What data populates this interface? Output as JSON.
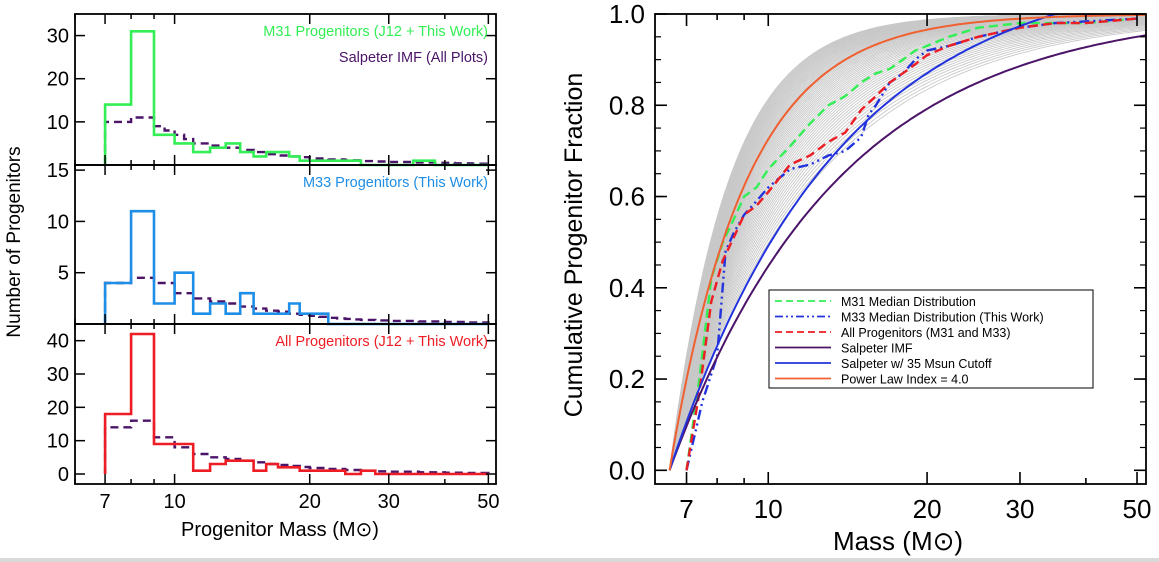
{
  "chart_data": [
    {
      "type": "bar",
      "panel": "M31",
      "x_scale": "log",
      "xlim": [
        6,
        52
      ],
      "ylim": [
        0,
        35
      ],
      "xticks": [
        7,
        10,
        20,
        30,
        50
      ],
      "yticks": [
        10,
        20,
        30
      ],
      "ylabel": "Number of Progenitors",
      "legend_placement": "top-right",
      "series": [
        {
          "name": "M31 Progenitors (J12 + This Work)",
          "color": "#33ee55",
          "style": "step",
          "bin_edges": [
            7,
            7.5,
            8.0,
            8.5,
            9.0,
            9.5,
            10.0,
            10.5,
            11.0,
            11.5,
            12.0,
            13.0,
            14.0,
            15.0,
            16.0,
            17.0,
            18.0,
            19.0,
            20.0,
            22.0,
            24.0,
            26.0,
            28.0,
            30.0,
            34.0,
            38.0,
            42.0,
            46.0,
            50.0
          ],
          "counts": [
            14,
            14,
            31,
            31,
            7,
            7,
            5,
            5,
            3,
            3,
            4,
            5,
            3,
            2,
            3,
            3,
            2,
            1,
            1,
            1,
            1,
            0,
            0,
            0,
            1,
            0,
            0,
            0
          ]
        },
        {
          "name": "Salpeter IMF (All Plots)",
          "color": "#4b1468",
          "style": "dashed-step",
          "bin_edges": [
            7,
            7.5,
            8.0,
            8.5,
            9.0,
            9.5,
            10.0,
            10.5,
            11.0,
            11.5,
            12.0,
            13.0,
            14.0,
            15.0,
            16.0,
            17.0,
            18.0,
            19.0,
            20.0,
            22.0,
            24.0,
            26.0,
            28.0,
            30.0,
            34.0,
            38.0,
            42.0,
            46.0,
            50.0
          ],
          "counts": [
            10,
            10,
            11,
            11,
            9,
            8,
            7,
            6,
            5,
            5,
            4.5,
            4,
            3.5,
            3,
            2.5,
            2.2,
            2,
            1.8,
            1.5,
            1.3,
            1.1,
            0.9,
            0.8,
            0.7,
            0.6,
            0.5,
            0.4,
            0.3
          ]
        }
      ]
    },
    {
      "type": "bar",
      "panel": "M33",
      "x_scale": "log",
      "xlim": [
        6,
        52
      ],
      "ylim": [
        0,
        15.5
      ],
      "xticks": [
        7,
        10,
        20,
        30,
        50
      ],
      "yticks": [
        5,
        10,
        15
      ],
      "legend_placement": "top-right",
      "series": [
        {
          "name": "M33 Progenitors (This Work)",
          "color": "#1e8ee6",
          "style": "step",
          "bin_edges": [
            7,
            8,
            9,
            10,
            11,
            12,
            13,
            14,
            15,
            16,
            17,
            18,
            19,
            20,
            21,
            22,
            23,
            24,
            25,
            26,
            28,
            30,
            35,
            40,
            45,
            50
          ],
          "counts": [
            4,
            11,
            2,
            5,
            1,
            2,
            1,
            3,
            1,
            1,
            1,
            2,
            1,
            1,
            1,
            0,
            0,
            0,
            0,
            0,
            0,
            0,
            0,
            0,
            0
          ]
        },
        {
          "name": "",
          "color": "#4b1468",
          "style": "dashed-step",
          "bin_edges": [
            7,
            8,
            9,
            10,
            11,
            12,
            13,
            14,
            15,
            16,
            17,
            18,
            19,
            20,
            21,
            22,
            23,
            24,
            25,
            26,
            28,
            30,
            35,
            40,
            45,
            50
          ],
          "counts": [
            4,
            4.5,
            4,
            3,
            2.5,
            2.2,
            2,
            1.7,
            1.5,
            1.3,
            1.2,
            1.0,
            0.9,
            0.8,
            0.7,
            0.6,
            0.55,
            0.5,
            0.45,
            0.4,
            0.35,
            0.3,
            0.25,
            0.2,
            0.15
          ]
        }
      ]
    },
    {
      "type": "bar",
      "panel": "All",
      "x_scale": "log",
      "xlim": [
        6,
        52
      ],
      "ylim": [
        -3,
        45
      ],
      "xticks": [
        7,
        10,
        20,
        30,
        50
      ],
      "yticks": [
        0,
        10,
        20,
        30,
        40
      ],
      "xlabel": "Progenitor Mass (M⊙)",
      "legend_placement": "top-right",
      "series": [
        {
          "name": "All Progenitors (J12 + This Work)",
          "color": "#ee1c24",
          "style": "step",
          "bin_edges": [
            7,
            8,
            9,
            10,
            11,
            12,
            13,
            14,
            15,
            16,
            17,
            18,
            19,
            20,
            22,
            24,
            26,
            28,
            30,
            35,
            40,
            45,
            50
          ],
          "counts": [
            18,
            42,
            9,
            9,
            1,
            3,
            4,
            4,
            1,
            3,
            2,
            2,
            1,
            1,
            1,
            0,
            1,
            0,
            0,
            0,
            0,
            0
          ]
        },
        {
          "name": "",
          "color": "#4b1468",
          "style": "dashed-step",
          "bin_edges": [
            7,
            8,
            9,
            10,
            11,
            12,
            13,
            14,
            15,
            16,
            17,
            18,
            19,
            20,
            22,
            24,
            26,
            28,
            30,
            35,
            40,
            45,
            50
          ],
          "counts": [
            14,
            16,
            11,
            8,
            6,
            5,
            4.5,
            4,
            3.5,
            3,
            2.7,
            2.4,
            2.1,
            1.8,
            1.5,
            1.2,
            1.0,
            0.8,
            0.7,
            0.5,
            0.4,
            0.3
          ]
        }
      ]
    },
    {
      "type": "line",
      "panel": "cumulative",
      "x_scale": "log",
      "xlim": [
        6.1,
        52
      ],
      "ylim": [
        -0.03,
        1.0
      ],
      "xticks": [
        7,
        10,
        20,
        30,
        50
      ],
      "yticks": [
        0.0,
        0.2,
        0.4,
        0.6,
        0.8,
        1.0
      ],
      "ytick_labels": [
        "0.0",
        "0.2",
        "0.4",
        "0.6",
        "0.8",
        "1.0"
      ],
      "xlabel": "Mass (M⊙)",
      "ylabel": "Cumulative Progenitor Fraction",
      "legend_placement": "center-right",
      "grey_realizations": {
        "color": "#c8c8c8",
        "count": 60
      },
      "series": [
        {
          "name": "M31 Median Distribution",
          "color": "#33ee55",
          "style": "dashed",
          "x": [
            7.0,
            7.4,
            7.8,
            8.2,
            8.6,
            9.0,
            9.5,
            10.0,
            11.0,
            12.0,
            13.0,
            14.0,
            15.0,
            16.0,
            17.0,
            18.0,
            19.0,
            20.0,
            22.0,
            25.0,
            30.0,
            35.0,
            40.0,
            50.0
          ],
          "y": [
            0.0,
            0.2,
            0.42,
            0.5,
            0.55,
            0.6,
            0.62,
            0.66,
            0.71,
            0.76,
            0.8,
            0.82,
            0.85,
            0.87,
            0.88,
            0.9,
            0.92,
            0.93,
            0.95,
            0.97,
            0.98,
            0.98,
            0.98,
            0.99
          ]
        },
        {
          "name": "M33 Median Distribution (This Work)",
          "color": "#2233dd",
          "style": "dash-dot-dot",
          "x": [
            7.0,
            7.5,
            8.0,
            8.3,
            8.6,
            9.0,
            9.5,
            10.0,
            11.0,
            12.0,
            13.0,
            14.0,
            15.0,
            15.5,
            16.0,
            17.0,
            18.0,
            19.0,
            20.0,
            22.0,
            25.0,
            30.0,
            35.0,
            50.0
          ],
          "y": [
            0.0,
            0.15,
            0.25,
            0.48,
            0.52,
            0.56,
            0.59,
            0.62,
            0.66,
            0.67,
            0.69,
            0.7,
            0.73,
            0.78,
            0.8,
            0.85,
            0.87,
            0.9,
            0.92,
            0.93,
            0.95,
            0.97,
            0.98,
            0.99
          ]
        },
        {
          "name": "All Progenitors (M31 and M33)",
          "color": "#ee1c24",
          "style": "dashed",
          "x": [
            7.0,
            7.4,
            7.8,
            8.2,
            8.6,
            9.0,
            9.5,
            10.0,
            11.0,
            12.0,
            13.0,
            14.0,
            15.0,
            16.0,
            17.0,
            18.0,
            19.0,
            20.0,
            22.0,
            25.0,
            30.0,
            35.0,
            40.0,
            50.0
          ],
          "y": [
            0.0,
            0.17,
            0.37,
            0.46,
            0.51,
            0.56,
            0.58,
            0.61,
            0.67,
            0.69,
            0.72,
            0.74,
            0.79,
            0.82,
            0.85,
            0.87,
            0.89,
            0.91,
            0.93,
            0.95,
            0.97,
            0.98,
            0.98,
            0.99
          ]
        },
        {
          "name": "Salpeter IMF",
          "color": "#4b1468",
          "style": "solid",
          "function": "salpeter",
          "m_low": 6.5,
          "m_high": 150
        },
        {
          "name": "Salpeter w/ 35 Msun Cutoff",
          "color": "#2233dd",
          "style": "solid",
          "function": "salpeter",
          "m_low": 6.5,
          "m_high": 35
        },
        {
          "name": "Power Law Index = 4.0",
          "color": "#f06030",
          "style": "solid",
          "function": "powerlaw",
          "index": 4.0,
          "m_low": 6.5
        }
      ]
    }
  ]
}
